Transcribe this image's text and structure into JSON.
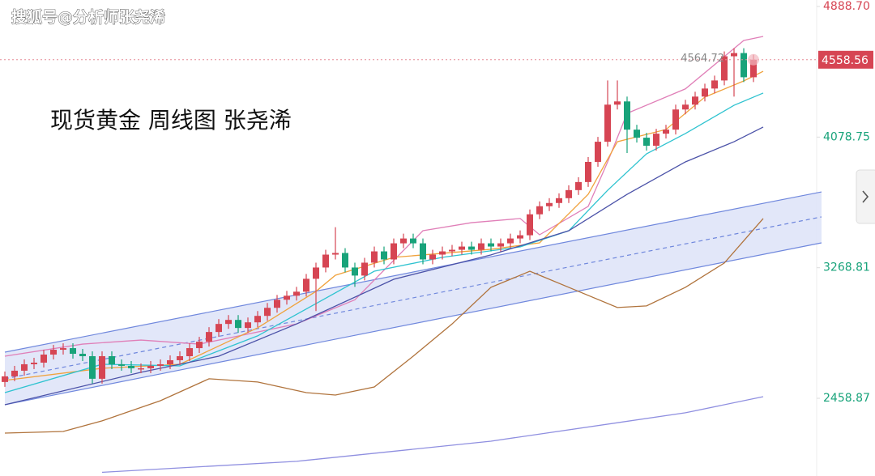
{
  "chart_data": {
    "type": "candlestick",
    "title": "现货黄金 周线图 张尧浠",
    "watermark": "搜狐号@分析师张尧浠",
    "ylim": [
      1977,
      4929
    ],
    "yticks": [
      {
        "value": 4888.7,
        "label": "4888.70"
      },
      4078.75,
      3268.81,
      2458.87
    ],
    "last_price": 4558.56,
    "high_label": 4564.72,
    "up_color": "#d64553",
    "down_color": "#18a37a",
    "candles": {
      "open": [
        2560,
        2595,
        2630,
        2670,
        2680,
        2730,
        2760,
        2770,
        2735,
        2720,
        2580,
        2720,
        2670,
        2660,
        2645,
        2645,
        2660,
        2670,
        2695,
        2720,
        2770,
        2810,
        2870,
        2920,
        2945,
        2895,
        2930,
        2970,
        3020,
        3070,
        3095,
        3120,
        3200,
        3270,
        3350,
        3360,
        3270,
        3220,
        3300,
        3370,
        3320,
        3420,
        3450,
        3420,
        3320,
        3350,
        3370,
        3380,
        3400,
        3380,
        3420,
        3400,
        3420,
        3450,
        3470,
        3600,
        3650,
        3670,
        3700,
        3750,
        3800,
        3925,
        4050,
        4280,
        4300,
        4125,
        4075,
        4025,
        4100,
        4125,
        4250,
        4280,
        4330,
        4380,
        4430,
        4580,
        4600,
        4450
      ],
      "high": [
        2625,
        2660,
        2700,
        2710,
        2760,
        2790,
        2800,
        2800,
        2765,
        2750,
        2750,
        2750,
        2700,
        2690,
        2675,
        2690,
        2700,
        2725,
        2750,
        2800,
        2840,
        2900,
        2950,
        2975,
        2975,
        2960,
        3000,
        3050,
        3100,
        3125,
        3150,
        3230,
        3300,
        3380,
        3520,
        3390,
        3300,
        3330,
        3400,
        3400,
        3450,
        3480,
        3480,
        3450,
        3380,
        3400,
        3410,
        3430,
        3430,
        3450,
        3450,
        3450,
        3480,
        3500,
        3630,
        3680,
        3700,
        3730,
        3780,
        3830,
        3955,
        4080,
        4430,
        4430,
        4330,
        4155,
        4105,
        4130,
        4155,
        4280,
        4310,
        4360,
        4410,
        4460,
        4610,
        4630,
        4630,
        4590
      ],
      "low": [
        2530,
        2565,
        2600,
        2640,
        2650,
        2700,
        2730,
        2705,
        2690,
        2550,
        2550,
        2640,
        2630,
        2615,
        2615,
        2615,
        2630,
        2640,
        2665,
        2690,
        2740,
        2780,
        2840,
        2890,
        2865,
        2865,
        2900,
        2940,
        2990,
        3040,
        3065,
        3090,
        3000,
        3240,
        3320,
        3240,
        3150,
        3190,
        3270,
        3290,
        3290,
        3390,
        3390,
        3290,
        3290,
        3320,
        3340,
        3350,
        3350,
        3350,
        3370,
        3370,
        3390,
        3420,
        3440,
        3570,
        3620,
        3640,
        3670,
        3720,
        3770,
        3895,
        4020,
        4250,
        3980,
        4045,
        3995,
        3995,
        4070,
        4095,
        4220,
        4250,
        4300,
        4350,
        4400,
        4330,
        4420,
        4420
      ],
      "close": [
        2595,
        2630,
        2670,
        2680,
        2730,
        2760,
        2770,
        2735,
        2720,
        2580,
        2720,
        2670,
        2660,
        2645,
        2645,
        2660,
        2670,
        2695,
        2720,
        2770,
        2810,
        2870,
        2920,
        2945,
        2895,
        2930,
        2970,
        3020,
        3070,
        3095,
        3120,
        3200,
        3270,
        3350,
        3360,
        3270,
        3220,
        3300,
        3370,
        3320,
        3420,
        3450,
        3420,
        3320,
        3350,
        3370,
        3380,
        3400,
        3380,
        3420,
        3400,
        3420,
        3450,
        3470,
        3600,
        3650,
        3670,
        3700,
        3750,
        3800,
        3925,
        4050,
        4280,
        4300,
        4125,
        4075,
        4025,
        4100,
        4125,
        4250,
        4280,
        4330,
        4380,
        4430,
        4580,
        4600,
        4450,
        4559
      ]
    },
    "channel": {
      "color": "#7088dd",
      "fill": "#dde3f8",
      "upper": {
        "x": [
          0,
          84
        ],
        "values": [
          2745,
          3739
        ]
      },
      "lower": {
        "x": [
          0,
          84
        ],
        "values": [
          2419,
          3423
        ]
      },
      "middle": {
        "x": [
          0,
          84
        ],
        "values": [
          2580,
          3584
        ]
      }
    },
    "lines": [
      {
        "color": "#e07fb8",
        "x": [
          0,
          8,
          14,
          20,
          30,
          36,
          43,
          48,
          53,
          55,
          60,
          62,
          64,
          70,
          74,
          76,
          78
        ],
        "values": [
          2720,
          2795,
          2820,
          2795,
          2920,
          3070,
          3498,
          3548,
          3574,
          3473,
          3649,
          3925,
          4226,
          4378,
          4578,
          4678,
          4703
        ]
      },
      {
        "color": "#f0a23c",
        "x": [
          0,
          10,
          18,
          26,
          32,
          34,
          40,
          50,
          55,
          60,
          63,
          68,
          72,
          76,
          78
        ],
        "values": [
          2570,
          2645,
          2670,
          2896,
          3122,
          3222,
          3333,
          3383,
          3423,
          3724,
          4050,
          4126,
          4327,
          4427,
          4487
        ]
      },
      {
        "color": "#2fc3d0",
        "x": [
          0,
          10,
          18,
          26,
          32,
          38,
          45,
          53,
          58,
          62,
          66,
          70,
          75,
          78
        ],
        "values": [
          2494,
          2670,
          2660,
          2846,
          3046,
          3247,
          3333,
          3398,
          3498,
          3749,
          3975,
          4101,
          4276,
          4352
        ]
      },
      {
        "color": "#4b52a8",
        "x": [
          0,
          14,
          22,
          30,
          40,
          50,
          58,
          64,
          70,
          75,
          78
        ],
        "values": [
          2419,
          2620,
          2720,
          2920,
          3197,
          3348,
          3498,
          3724,
          3925,
          4050,
          4141
        ]
      },
      {
        "color": "#b0733c",
        "x": [
          0,
          6,
          10,
          16,
          21,
          26,
          31,
          34,
          38,
          42,
          46,
          50,
          54,
          55,
          58,
          63,
          66,
          70,
          74,
          78
        ],
        "values": [
          2243,
          2253,
          2319,
          2444,
          2580,
          2560,
          2494,
          2479,
          2529,
          2720,
          2920,
          3147,
          3247,
          3222,
          3147,
          3022,
          3032,
          3147,
          3298,
          3574
        ]
      },
      {
        "color": "#8f8fe0",
        "x": [
          10,
          30,
          50,
          70,
          78
        ],
        "values": [
          2000,
          2068,
          2193,
          2369,
          2469
        ]
      }
    ]
  }
}
